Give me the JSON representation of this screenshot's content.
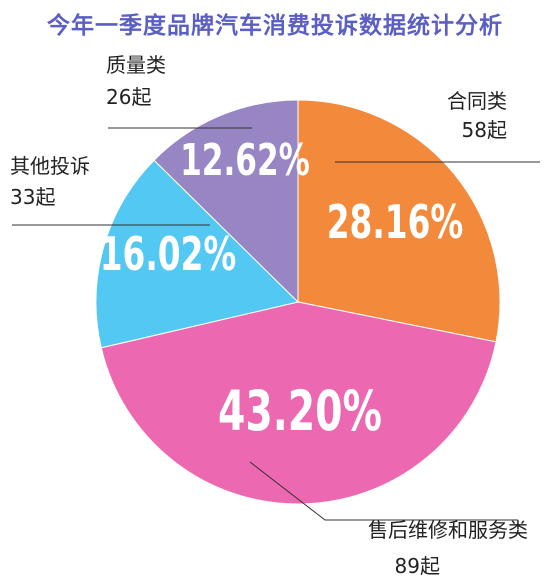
{
  "chart_data": {
    "type": "pie",
    "title": "今年一季度品牌汽车消费投诉数据统计分析",
    "unit": "起",
    "slices": [
      {
        "category": "合同类",
        "count_text": "58起",
        "value": 58,
        "percent_text": "28.16%",
        "percent": 28.16,
        "color": "#f38a3b"
      },
      {
        "category": "售后维修和服务类",
        "count_text": "89起",
        "value": 89,
        "percent_text": "43.20%",
        "percent": 43.2,
        "color": "#ec68b0"
      },
      {
        "category": "其他投诉",
        "count_text": "33起",
        "value": 33,
        "percent_text": "16.02%",
        "percent": 16.02,
        "color": "#52c8f2"
      },
      {
        "category": "质量类",
        "count_text": "26起",
        "value": 26,
        "percent_text": "12.62%",
        "percent": 12.62,
        "color": "#9785c4"
      }
    ]
  }
}
